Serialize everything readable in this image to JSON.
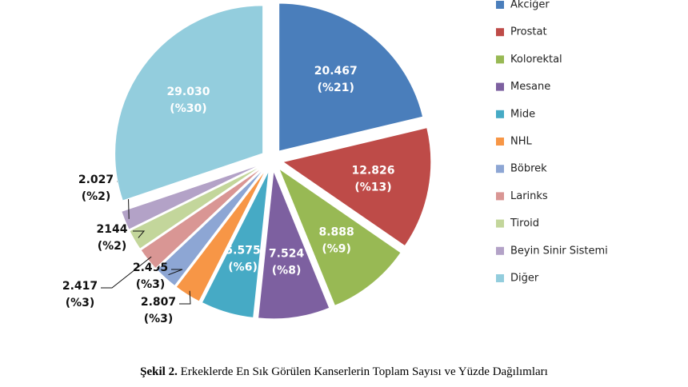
{
  "chart_data": {
    "type": "pie",
    "categories": [
      "Akciğer",
      "Prostat",
      "Kolorektal",
      "Mesane",
      "Mide",
      "NHL",
      "Böbrek",
      "Larinks",
      "Tiroid",
      "Beyin Sinir Sistemi",
      "Diğer"
    ],
    "values": [
      20467,
      12826,
      8888,
      7524,
      5575,
      2807,
      2495,
      2417,
      2144,
      2027,
      29030
    ],
    "value_labels": [
      "20.467",
      "12.826",
      "8.888",
      "7.524",
      "5.575",
      "2.807",
      "2.495",
      "2.417",
      "2144",
      "2.027",
      "29.030"
    ],
    "percent_labels": [
      "(%21)",
      "(%13)",
      "(%9)",
      "(%8)",
      "(%6)",
      "(%3)",
      "(%3)",
      "(%3)",
      "(%2)",
      "(%2)",
      "(%30)"
    ],
    "colors": [
      "#4a7ebb",
      "#be4b48",
      "#98b954",
      "#7d60a0",
      "#46aac5",
      "#f79646",
      "#8da6d4",
      "#d99694",
      "#c3d69b",
      "#b3a2c7",
      "#93cddd"
    ],
    "legend": "right",
    "caption_label": "Şekil 2.",
    "caption_text": "Erkeklerde En Sık Görülen Kanserlerin Toplam Sayısı ve Yüzde Dağılımları"
  }
}
